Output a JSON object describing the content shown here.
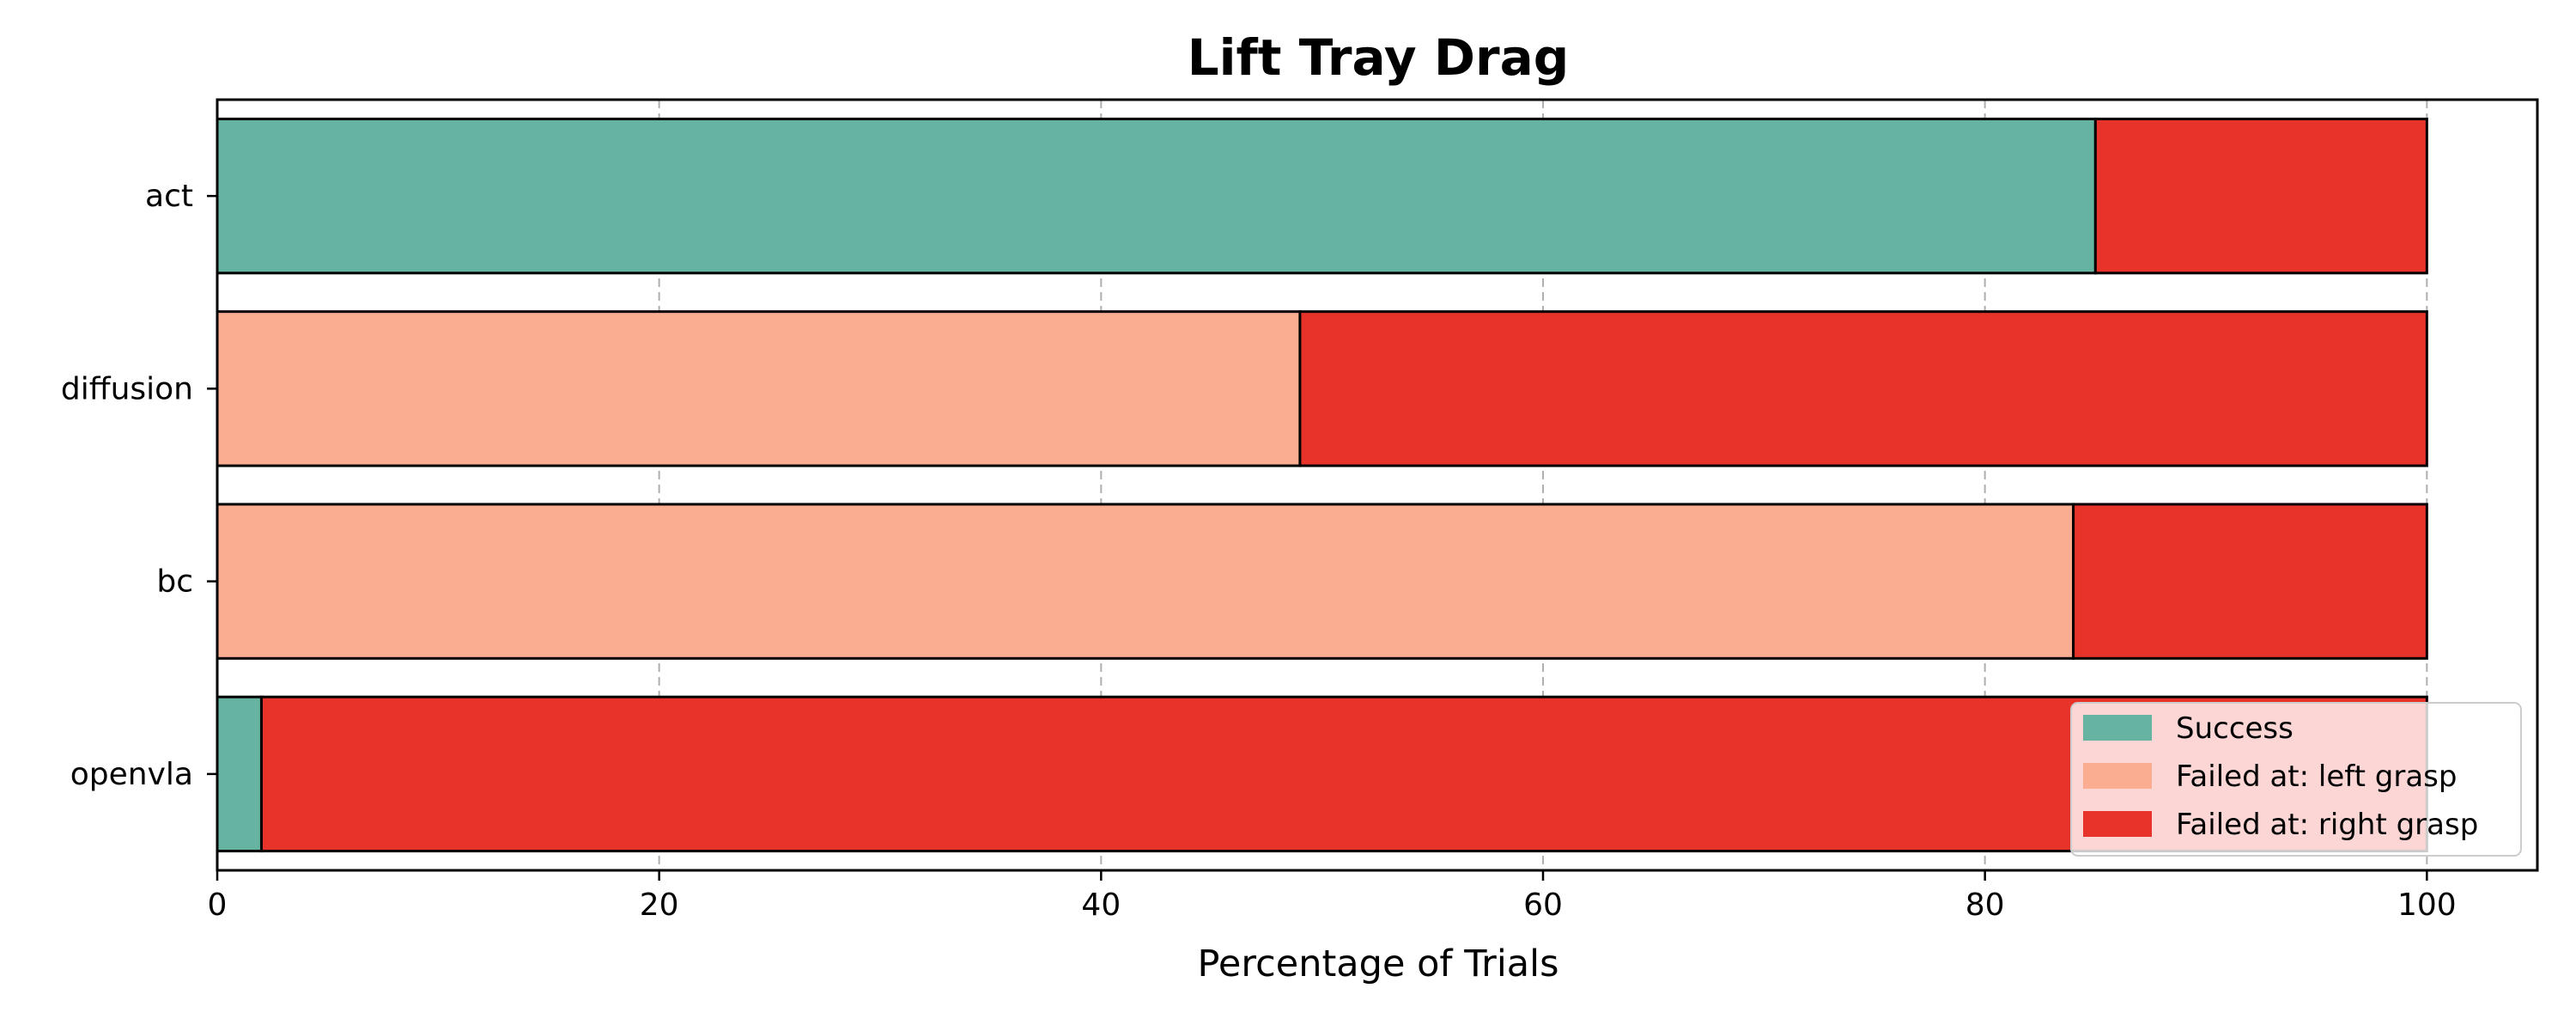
{
  "chart_data": {
    "type": "bar",
    "orientation": "horizontal",
    "stacked": true,
    "title": "Lift Tray Drag",
    "xlabel": "Percentage of Trials",
    "ylabel": "",
    "xlim": [
      0,
      105
    ],
    "xticks": [
      0,
      20,
      40,
      60,
      80,
      100
    ],
    "grid": "x-dashed",
    "legend_position": "bottom-right",
    "categories": [
      "act",
      "diffusion",
      "bc",
      "openvla"
    ],
    "series": [
      {
        "name": "Success",
        "color": "#67b3a2",
        "values": [
          85,
          0,
          0,
          2
        ]
      },
      {
        "name": "Failed at: left grasp",
        "color": "#fbad92",
        "values": [
          0,
          49,
          84,
          0
        ]
      },
      {
        "name": "Failed at: right grasp",
        "color": "#e8332a",
        "values": [
          15,
          51,
          16,
          98
        ]
      }
    ]
  }
}
